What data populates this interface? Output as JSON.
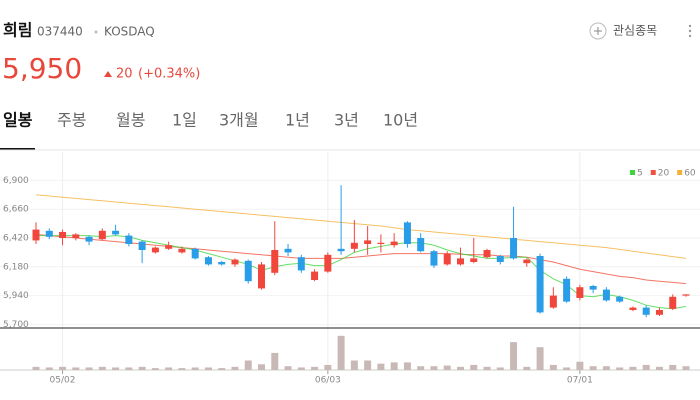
{
  "header": {
    "name": "희림",
    "code": "037440",
    "market": "KOSDAQ",
    "watch": "관심종목"
  },
  "price": {
    "value": "5,950",
    "change": "20",
    "change_pct": "(+0.34%)"
  },
  "tabs": [
    "일봉",
    "주봉",
    "월봉",
    "1일",
    "3개월",
    "1년",
    "3년",
    "10년"
  ],
  "chart_data": {
    "type": "candlestick",
    "categories": [
      null,
      null,
      "05/02",
      null,
      null,
      null,
      null,
      null,
      null,
      null,
      null,
      null,
      null,
      null,
      null,
      null,
      null,
      null,
      null,
      null,
      null,
      null,
      "06/03",
      null,
      null,
      null,
      null,
      null,
      null,
      null,
      null,
      null,
      null,
      null,
      null,
      null,
      null,
      null,
      null,
      null,
      null,
      "07/01",
      null,
      null,
      null,
      null,
      null,
      null,
      null,
      null
    ],
    "open": [
      6400,
      6480,
      6420,
      6420,
      6430,
      6410,
      6480,
      6440,
      6390,
      6300,
      6330,
      6300,
      6330,
      6260,
      6220,
      6200,
      6230,
      6000,
      6130,
      6330,
      6260,
      6070,
      6140,
      6330,
      6330,
      6370,
      6370,
      6360,
      6550,
      6420,
      6310,
      6200,
      6200,
      6220,
      6260,
      6270,
      6420,
      6210,
      6270,
      5840,
      6080,
      5920,
      6020,
      5990,
      5930,
      5820,
      5840,
      5780,
      5830,
      5940
    ],
    "high": [
      6550,
      6500,
      6490,
      6460,
      6440,
      6500,
      6530,
      6460,
      6400,
      6350,
      6390,
      6350,
      6340,
      6270,
      6230,
      6250,
      6240,
      6220,
      6560,
      6370,
      6280,
      6160,
      6300,
      6860,
      6570,
      6520,
      6450,
      6460,
      6560,
      6460,
      6320,
      6310,
      6340,
      6420,
      6330,
      6280,
      6680,
      6250,
      6290,
      6010,
      6100,
      6030,
      6030,
      6010,
      5940,
      5850,
      5860,
      5840,
      5950,
      5950
    ],
    "low": [
      6370,
      6410,
      6360,
      6400,
      6360,
      6400,
      6440,
      6350,
      6210,
      6290,
      6320,
      6290,
      6240,
      6190,
      6190,
      6180,
      6040,
      5990,
      6110,
      6270,
      6130,
      6060,
      6130,
      6280,
      6300,
      6280,
      6300,
      6340,
      6340,
      6300,
      6170,
      6190,
      6190,
      6210,
      6250,
      6200,
      6240,
      6180,
      5790,
      5830,
      5880,
      5900,
      5960,
      5890,
      5880,
      5810,
      5760,
      5770,
      5820,
      5930
    ],
    "close": [
      6490,
      6430,
      6470,
      6450,
      6390,
      6480,
      6450,
      6370,
      6320,
      6340,
      6360,
      6330,
      6250,
      6200,
      6200,
      6240,
      6060,
      6200,
      6320,
      6300,
      6150,
      6140,
      6280,
      6310,
      6380,
      6400,
      6380,
      6390,
      6370,
      6310,
      6190,
      6290,
      6250,
      6250,
      6320,
      6220,
      6250,
      6240,
      5800,
      5940,
      5890,
      6010,
      5990,
      5900,
      5890,
      5840,
      5780,
      5820,
      5930,
      5950
    ],
    "up_color": "#f0463c",
    "down_color": "#2a9de8",
    "ylim": [
      5670,
      7070
    ],
    "yticks": [
      {
        "value": 5700,
        "label": "5,700"
      },
      {
        "value": 5940,
        "label": "5,940"
      },
      {
        "value": 6180,
        "label": "6,180"
      },
      {
        "value": 6420,
        "label": "6,420"
      },
      {
        "value": 6660,
        "label": "6,660"
      },
      {
        "value": 6900,
        "label": "6,900"
      }
    ],
    "series": [
      {
        "name": "5",
        "color": "#3dd63d",
        "values": [
          6440,
          6440,
          6440,
          6440,
          6440,
          6430,
          6440,
          6430,
          6400,
          6380,
          6360,
          6340,
          6320,
          6290,
          6260,
          6230,
          6200,
          6150,
          6180,
          6200,
          6210,
          6190,
          6190,
          6240,
          6300,
          6330,
          6350,
          6370,
          6380,
          6380,
          6360,
          6320,
          6290,
          6270,
          6250,
          6250,
          6260,
          6260,
          6150,
          6080,
          6030,
          5940,
          5930,
          5950,
          5930,
          5900,
          5860,
          5840,
          5830,
          5850
        ]
      },
      {
        "name": "20",
        "color": "#f0513c",
        "values": [
          6450,
          6440,
          6430,
          6420,
          6410,
          6400,
          6390,
          6380,
          6370,
          6360,
          6350,
          6340,
          6330,
          6320,
          6310,
          6300,
          6290,
          6280,
          6270,
          6260,
          6250,
          6250,
          6250,
          6250,
          6260,
          6270,
          6280,
          6290,
          6290,
          6290,
          6290,
          6290,
          6285,
          6280,
          6280,
          6270,
          6270,
          6260,
          6240,
          6220,
          6190,
          6160,
          6140,
          6120,
          6100,
          6090,
          6070,
          6060,
          6050,
          6040
        ]
      },
      {
        "name": "60",
        "color": "#f5b03c",
        "values": [
          6780,
          6770,
          6760,
          6750,
          6740,
          6730,
          6720,
          6710,
          6700,
          6690,
          6680,
          6670,
          6660,
          6650,
          6640,
          6630,
          6620,
          6610,
          6600,
          6590,
          6580,
          6570,
          6560,
          6550,
          6540,
          6530,
          6520,
          6505,
          6490,
          6480,
          6470,
          6460,
          6450,
          6440,
          6430,
          6420,
          6410,
          6400,
          6390,
          6380,
          6370,
          6360,
          6350,
          6340,
          6325,
          6310,
          6295,
          6280,
          6265,
          6250
        ]
      }
    ],
    "volume": {
      "color": "#c9b9b6",
      "ylim": [
        0,
        600000
      ],
      "values": [
        50000,
        40000,
        50000,
        40000,
        40000,
        50000,
        40000,
        40000,
        50000,
        30000,
        40000,
        30000,
        40000,
        40000,
        30000,
        50000,
        150000,
        90000,
        270000,
        60000,
        40000,
        50000,
        80000,
        540000,
        150000,
        150000,
        100000,
        120000,
        120000,
        60000,
        60000,
        70000,
        50000,
        80000,
        50000,
        40000,
        440000,
        50000,
        360000,
        80000,
        40000,
        130000,
        60000,
        60000,
        40000,
        50000,
        80000,
        50000,
        80000,
        60000
      ]
    }
  }
}
